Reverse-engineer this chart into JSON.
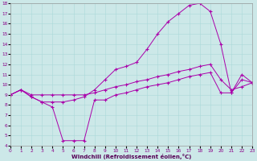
{
  "xlabel": "Windchill (Refroidissement éolien,°C)",
  "bg_color": "#cce8e8",
  "line_color": "#aa00aa",
  "xlim": [
    0,
    23
  ],
  "ylim": [
    4,
    18
  ],
  "xticks": [
    0,
    1,
    2,
    3,
    4,
    5,
    6,
    7,
    8,
    9,
    10,
    11,
    12,
    13,
    14,
    15,
    16,
    17,
    18,
    19,
    20,
    21,
    22,
    23
  ],
  "yticks": [
    4,
    5,
    6,
    7,
    8,
    9,
    10,
    11,
    12,
    13,
    14,
    15,
    16,
    17,
    18
  ],
  "line1_x": [
    0,
    1,
    2,
    3,
    4,
    5,
    6,
    7,
    8,
    9,
    10,
    11,
    12,
    13,
    14,
    15,
    16,
    17,
    18,
    19,
    20,
    21,
    22,
    23
  ],
  "line1_y": [
    9.0,
    9.5,
    8.8,
    8.3,
    7.8,
    4.5,
    4.5,
    4.5,
    8.5,
    8.5,
    9.0,
    9.2,
    9.5,
    9.8,
    10.0,
    10.2,
    10.5,
    10.8,
    11.0,
    11.2,
    9.2,
    9.2,
    10.5,
    10.2
  ],
  "line2_x": [
    0,
    1,
    2,
    3,
    4,
    5,
    6,
    7,
    8,
    9,
    10,
    11,
    12,
    13,
    14,
    15,
    16,
    17,
    18,
    19,
    20,
    21,
    22,
    23
  ],
  "line2_y": [
    9.0,
    9.5,
    8.8,
    8.3,
    8.3,
    8.3,
    8.5,
    8.8,
    9.5,
    10.5,
    11.5,
    11.8,
    12.2,
    13.5,
    15.0,
    16.2,
    17.0,
    17.8,
    18.0,
    17.2,
    14.0,
    9.2,
    11.0,
    10.2
  ],
  "line3_x": [
    0,
    1,
    2,
    3,
    4,
    5,
    6,
    7,
    8,
    9,
    10,
    11,
    12,
    13,
    14,
    15,
    16,
    17,
    18,
    19,
    20,
    21,
    22,
    23
  ],
  "line3_y": [
    9.0,
    9.5,
    9.0,
    9.0,
    9.0,
    9.0,
    9.0,
    9.0,
    9.2,
    9.5,
    9.8,
    10.0,
    10.3,
    10.5,
    10.8,
    11.0,
    11.3,
    11.5,
    11.8,
    12.0,
    10.5,
    9.5,
    9.8,
    10.2
  ]
}
